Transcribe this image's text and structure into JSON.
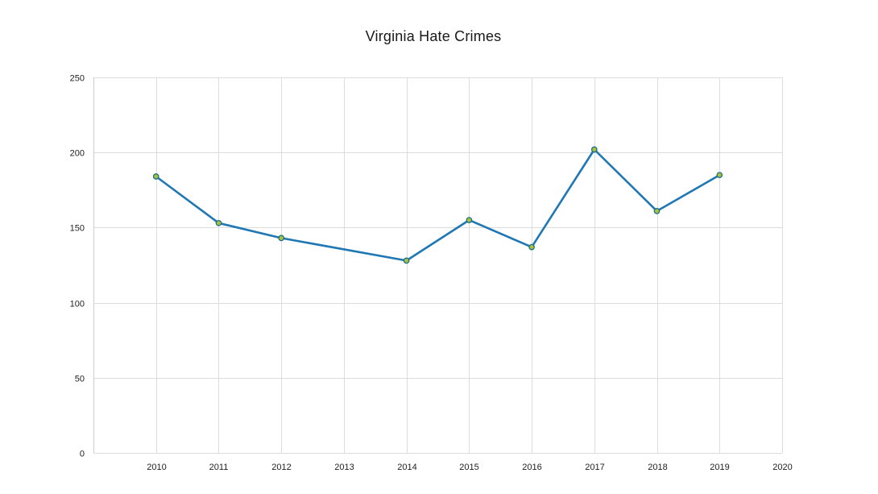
{
  "chart_data": {
    "type": "line",
    "title": "Virginia Hate Crimes",
    "xlabel": "",
    "ylabel": "",
    "x_ticks": [
      2010,
      2011,
      2012,
      2013,
      2014,
      2015,
      2016,
      2017,
      2018,
      2019,
      2020
    ],
    "y_ticks": [
      0,
      50,
      100,
      150,
      200,
      250
    ],
    "xlim": [
      2009,
      2020
    ],
    "ylim": [
      0,
      250
    ],
    "grid": true,
    "legend": "none",
    "series": [
      {
        "color": "#1f77b4",
        "marker_fill": "#a8c23a",
        "marker_stroke": "#1f6f8b",
        "points": [
          {
            "x": 2010,
            "y": 184
          },
          {
            "x": 2011,
            "y": 153
          },
          {
            "x": 2012,
            "y": 143
          },
          {
            "x": 2014,
            "y": 128
          },
          {
            "x": 2015,
            "y": 155
          },
          {
            "x": 2016,
            "y": 137
          },
          {
            "x": 2017,
            "y": 202
          },
          {
            "x": 2018,
            "y": 161
          },
          {
            "x": 2019,
            "y": 185
          }
        ]
      }
    ]
  }
}
